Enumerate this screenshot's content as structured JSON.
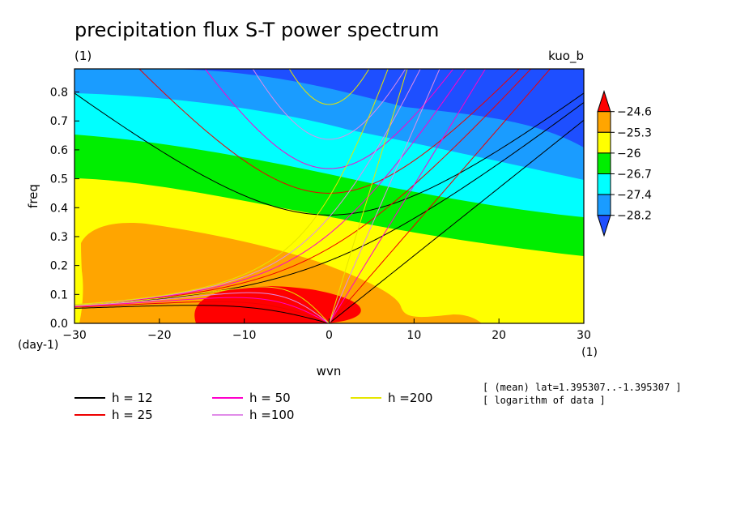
{
  "chart_data": {
    "type": "contour",
    "title": "precipitation flux S-T power spectrum",
    "subtitle_left": "(1)",
    "subtitle_right": "kuo_b",
    "xlabel": "wvn",
    "ylabel": "freq",
    "x_unit": "(1)",
    "y_unit": "(day-1)",
    "xlim": [
      -30,
      30
    ],
    "ylim": [
      0,
      0.88
    ],
    "xticks": [
      -30,
      -20,
      -10,
      0,
      10,
      20,
      30
    ],
    "yticks": [
      0,
      0.1,
      0.2,
      0.3,
      0.4,
      0.5,
      0.6,
      0.7,
      0.8
    ],
    "colorbar": {
      "levels": [
        "-24.6",
        "-25.3",
        "-26",
        "-26.7",
        "-27.4",
        "-28.2"
      ],
      "colors": [
        "#ff0000",
        "#ffa500",
        "#ffff00",
        "#00ee00",
        "#00ffff",
        "#1a9cff",
        "#1e4fff"
      ]
    },
    "dispersion_lines": [
      {
        "label": "h = 12",
        "h": 12,
        "color": "#000000"
      },
      {
        "label": "h = 25",
        "h": 25,
        "color": "#ee0000"
      },
      {
        "label": "h = 50",
        "h": 50,
        "color": "#ff00cc"
      },
      {
        "label": "h =100",
        "h": 100,
        "color": "#e08ce8"
      },
      {
        "label": "h =200",
        "h": 200,
        "color": "#e6e600"
      }
    ],
    "notes": [
      "[ (mean) lat=1.395307..-1.395307 ]",
      "[ logarithm of data ]"
    ]
  }
}
